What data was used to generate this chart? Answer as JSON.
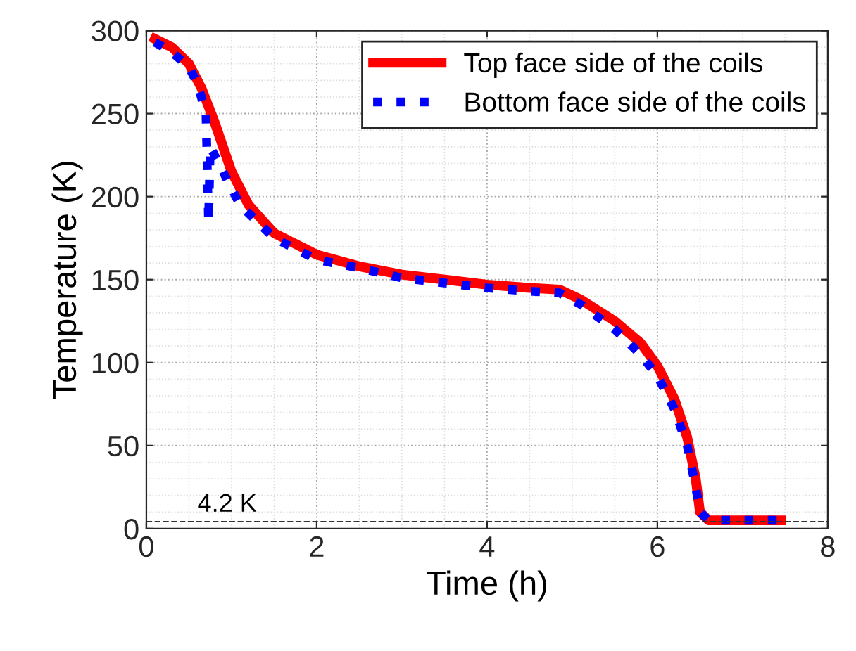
{
  "chart_data": {
    "type": "line",
    "xlabel": "Time (h)",
    "ylabel": "Temperature (K)",
    "xlim": [
      0,
      8
    ],
    "xticks": [
      0,
      2,
      4,
      6,
      8
    ],
    "ylim": [
      0,
      300
    ],
    "yticks": [
      0,
      50,
      100,
      150,
      200,
      250,
      300
    ],
    "grid": true,
    "legend": "top right",
    "series": [
      {
        "name": "Top face side of the coils",
        "color": "#ff0000",
        "line_style": "solid",
        "x": [
          0.1,
          0.3,
          0.5,
          0.65,
          0.8,
          1.0,
          1.2,
          1.5,
          2.0,
          2.5,
          3.0,
          3.5,
          4.0,
          4.5,
          4.85,
          5.1,
          5.5,
          5.8,
          6.0,
          6.2,
          6.35,
          6.45,
          6.5,
          6.6,
          7.0,
          7.45
        ],
        "values": [
          295,
          290,
          280,
          265,
          245,
          215,
          195,
          178,
          165,
          158,
          153,
          150,
          147,
          145,
          144,
          138,
          125,
          112,
          98,
          78,
          55,
          30,
          10,
          5,
          5,
          5
        ]
      },
      {
        "name": "Bottom face side of the coils",
        "color": "#0000ff",
        "line_style": "dotted",
        "x": [
          0.1,
          0.3,
          0.5,
          0.6,
          0.7,
          0.73,
          0.75,
          0.9,
          1.1,
          1.5,
          2.0,
          2.5,
          3.0,
          3.5,
          4.0,
          4.5,
          4.85,
          5.1,
          5.5,
          5.8,
          6.0,
          6.2,
          6.35,
          6.45,
          6.5,
          6.6,
          7.45
        ],
        "values": [
          293,
          287,
          278,
          268,
          250,
          185,
          230,
          215,
          195,
          175,
          162,
          157,
          151,
          148,
          145,
          143,
          142,
          135,
          120,
          105,
          92,
          72,
          50,
          25,
          10,
          5,
          5
        ]
      }
    ],
    "ref_lines": [
      {
        "axis": "y",
        "value": 4.2,
        "label": "4.2 K",
        "color": "#333333",
        "line_style": "dashed"
      }
    ]
  }
}
